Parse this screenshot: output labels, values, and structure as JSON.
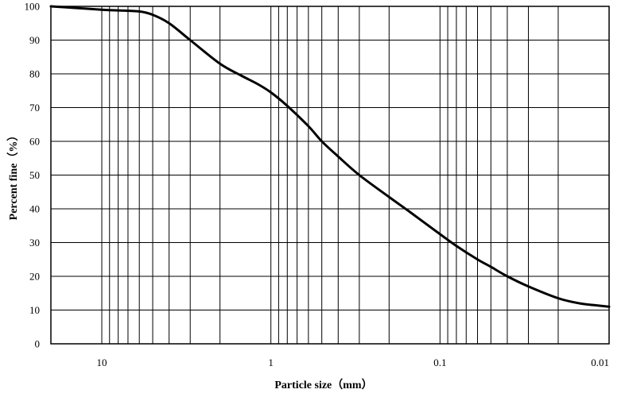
{
  "chart_data": {
    "type": "line",
    "title": "",
    "xlabel": "Particle size（mm）",
    "ylabel": "Percent  fine（%）",
    "x_scale": "log",
    "x_reversed": true,
    "xlim": [
      20,
      0.01
    ],
    "ylim": [
      0,
      100
    ],
    "x_tick_labels": [
      "10",
      "1",
      "0.1",
      "0.01"
    ],
    "x_tick_values": [
      10,
      1,
      0.1,
      0.01
    ],
    "y_tick_values": [
      0,
      10,
      20,
      30,
      40,
      50,
      60,
      70,
      80,
      90,
      100
    ],
    "y_tick_labels": [
      "0",
      "10",
      "20",
      "30",
      "40",
      "50",
      "60",
      "70",
      "80",
      "90",
      "100"
    ],
    "grid": true,
    "legend": "none",
    "line_color": "#000000",
    "series": [
      {
        "x": [
          20,
          15,
          10,
          8,
          6,
          5,
          4,
          3,
          2,
          1.5,
          1.2,
          1,
          0.8,
          0.6,
          0.5,
          0.4,
          0.3,
          0.2,
          0.15,
          0.1,
          0.08,
          0.06,
          0.05,
          0.04,
          0.03,
          0.02,
          0.015,
          0.012,
          0.01
        ],
        "y": [
          100,
          99.6,
          99,
          98.8,
          98.5,
          97.5,
          95,
          90,
          83,
          79.5,
          77,
          74.5,
          70.5,
          64.5,
          60,
          55.5,
          50,
          43.5,
          39,
          32.5,
          29,
          25,
          22.8,
          20,
          17,
          13.5,
          12,
          11.4,
          11
        ]
      }
    ]
  }
}
